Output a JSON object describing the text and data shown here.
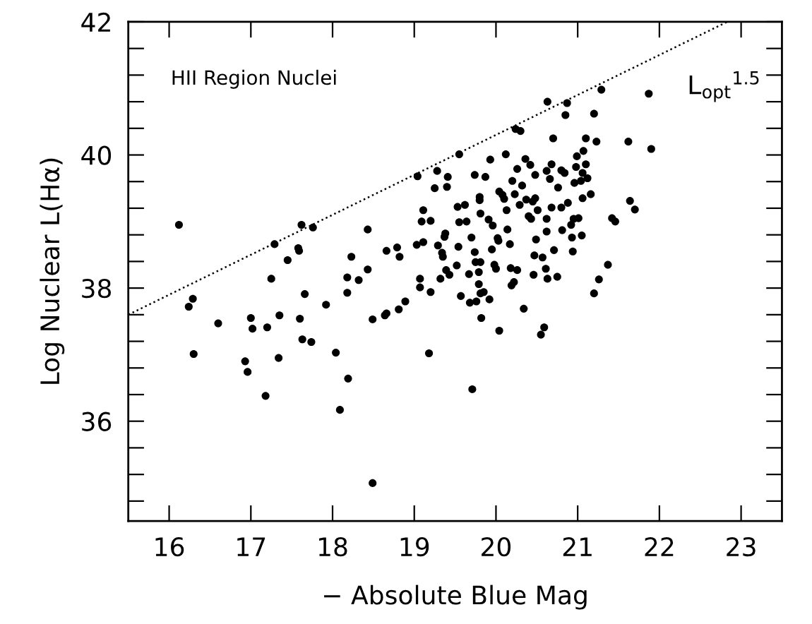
{
  "chart_data": {
    "type": "scatter",
    "xlabel": "− Absolute Blue Mag",
    "ylabel": "Log Nuclear L(Hα)",
    "annotations": [
      "HII Region Nuclei",
      "L$_{opt}$$^{1.5}$"
    ],
    "xlim": [
      15.5,
      23.5
    ],
    "xticks": [
      16,
      17,
      18,
      19,
      20,
      21,
      22,
      23
    ],
    "ylim": [
      34.5,
      42
    ],
    "yticks": [
      {
        "value": 34.8,
        "label": null
      },
      {
        "value": 35.2,
        "label": null
      },
      {
        "value": 35.6,
        "label": null
      },
      36,
      {
        "value": 36.4,
        "label": null
      },
      {
        "value": 36.8,
        "label": null
      },
      {
        "value": 37.2,
        "label": null
      },
      {
        "value": 37.6,
        "label": null
      },
      38,
      {
        "value": 38.4,
        "label": null
      },
      {
        "value": 38.8,
        "label": null
      },
      {
        "value": 39.2,
        "label": null
      },
      {
        "value": 39.6,
        "label": null
      },
      40,
      {
        "value": 40.4,
        "label": null
      },
      {
        "value": 40.8,
        "label": null
      },
      {
        "value": 41.2,
        "label": null
      },
      {
        "value": 41.6,
        "label": null
      },
      42
    ],
    "grid": false,
    "legend": false,
    "series": [
      {
        "color": "#000000",
        "marker": "circle",
        "x": [
          16.12,
          16.24,
          16.29,
          16.3,
          16.6,
          16.93,
          16.96,
          17.0,
          17.02,
          17.18,
          17.2,
          17.25,
          17.29,
          17.34,
          17.35,
          17.45,
          17.58,
          17.59,
          17.6,
          17.62,
          17.63,
          17.66,
          17.74,
          17.76,
          17.92,
          18.04,
          18.09,
          18.18,
          18.18,
          18.19,
          18.23,
          18.32,
          18.43,
          18.43,
          18.49,
          18.49,
          18.64,
          18.66,
          18.66,
          18.79,
          18.82,
          18.81,
          18.89,
          19.04,
          19.03,
          19.07,
          19.07,
          19.11,
          19.09,
          19.11,
          19.18,
          19.2,
          19.2,
          19.25,
          19.28,
          19.29,
          19.32,
          19.34,
          19.35,
          19.37,
          19.38,
          19.39,
          19.41,
          19.4,
          19.43,
          19.55,
          19.53,
          19.55,
          19.54,
          19.52,
          19.57,
          19.62,
          19.64,
          19.67,
          19.68,
          19.7,
          19.71,
          19.74,
          19.74,
          19.75,
          19.76,
          19.79,
          19.79,
          19.8,
          19.8,
          19.81,
          19.81,
          19.81,
          19.82,
          19.85,
          19.87,
          19.91,
          19.92,
          19.95,
          19.93,
          19.96,
          19.98,
          20.0,
          20.02,
          20.04,
          20.03,
          20.04,
          20.08,
          20.1,
          20.12,
          20.13,
          20.14,
          20.17,
          20.18,
          20.19,
          20.2,
          20.23,
          20.22,
          20.24,
          20.26,
          20.26,
          20.3,
          20.29,
          20.32,
          20.34,
          20.36,
          20.37,
          20.4,
          20.42,
          20.43,
          20.45,
          20.46,
          20.47,
          20.48,
          20.48,
          20.49,
          20.51,
          20.55,
          20.57,
          20.59,
          20.61,
          20.63,
          20.62,
          20.62,
          20.62,
          20.63,
          20.66,
          20.68,
          20.68,
          20.7,
          20.71,
          20.75,
          20.76,
          20.8,
          20.8,
          20.81,
          20.84,
          20.85,
          20.87,
          20.88,
          20.92,
          20.93,
          20.94,
          20.95,
          20.96,
          20.98,
          20.99,
          21.01,
          21.04,
          21.05,
          21.06,
          21.06,
          21.07,
          21.1,
          21.1,
          21.12,
          21.16,
          21.2,
          21.2,
          21.23,
          21.26,
          21.29,
          21.37,
          21.42,
          21.46,
          21.62,
          21.64,
          21.7,
          21.87,
          21.9
        ],
        "values": [
          38.95,
          37.72,
          37.84,
          37.01,
          37.47,
          36.9,
          36.74,
          37.55,
          37.39,
          36.38,
          37.41,
          38.14,
          38.66,
          36.95,
          37.59,
          38.42,
          38.6,
          38.56,
          37.54,
          38.95,
          37.23,
          37.91,
          37.19,
          38.91,
          37.75,
          37.03,
          36.17,
          38.16,
          37.93,
          36.64,
          38.47,
          38.12,
          38.88,
          38.28,
          37.53,
          35.07,
          37.59,
          37.62,
          38.56,
          38.61,
          38.47,
          37.68,
          37.8,
          39.68,
          38.65,
          38.14,
          38.01,
          39.17,
          39.0,
          38.69,
          37.02,
          39.01,
          37.94,
          39.5,
          39.76,
          38.64,
          38.14,
          38.53,
          38.47,
          38.77,
          38.82,
          38.27,
          39.67,
          39.52,
          38.2,
          40.01,
          39.22,
          38.99,
          38.62,
          38.34,
          37.88,
          39.25,
          39.0,
          38.21,
          37.78,
          38.76,
          36.48,
          39.7,
          38.54,
          38.39,
          37.8,
          38.06,
          38.24,
          39.37,
          39.32,
          39.12,
          37.92,
          38.39,
          37.55,
          37.94,
          39.67,
          39.03,
          37.83,
          38.58,
          39.93,
          38.94,
          38.35,
          38.29,
          38.75,
          39.45,
          38.71,
          37.36,
          39.4,
          39.34,
          40.01,
          39.17,
          38.88,
          38.66,
          38.3,
          38.04,
          39.61,
          39.41,
          38.09,
          40.39,
          39.79,
          38.27,
          40.36,
          39.25,
          39.54,
          37.69,
          39.94,
          39.33,
          39.08,
          39.85,
          39.04,
          39.3,
          38.2,
          38.49,
          39.35,
          39.7,
          38.73,
          39.17,
          37.3,
          38.46,
          37.41,
          38.29,
          40.8,
          39.76,
          39.04,
          38.85,
          38.14,
          39.64,
          39.21,
          39.86,
          40.25,
          38.57,
          38.17,
          39.51,
          39.21,
          39.77,
          38.87,
          39.73,
          40.6,
          40.78,
          39.28,
          38.95,
          38.76,
          38.55,
          39.04,
          39.58,
          39.82,
          39.98,
          39.05,
          39.61,
          38.79,
          39.73,
          39.35,
          40.06,
          40.25,
          39.86,
          39.65,
          39.41,
          37.92,
          40.62,
          40.2,
          38.13,
          40.98,
          38.35,
          39.05,
          39.0,
          40.2,
          39.31,
          39.18,
          40.92,
          40.09
        ]
      },
      {
        "type": "line",
        "color": "#000000",
        "line_style": "dotted",
        "marker": "none",
        "x": [
          15.5,
          22.83
        ],
        "values": [
          37.6,
          42
        ]
      }
    ]
  }
}
